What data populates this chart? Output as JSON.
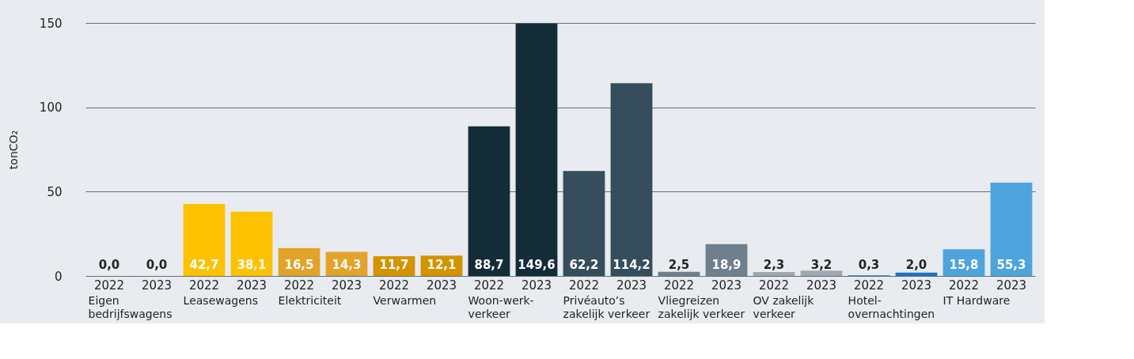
{
  "chart_data": {
    "type": "bar",
    "categories": [
      "2022",
      "2023",
      "2022",
      "2023",
      "2022",
      "2023",
      "2022",
      "2023",
      "2022",
      "2023",
      "2022",
      "2023",
      "2022",
      "2023",
      "2022",
      "2023",
      "2022",
      "2023",
      "2022",
      "2023"
    ],
    "values": [
      0.0,
      0.0,
      42.7,
      38.1,
      16.5,
      14.3,
      11.7,
      12.1,
      88.7,
      149.6,
      62.2,
      114.2,
      2.5,
      18.9,
      2.3,
      3.2,
      0.3,
      2.0,
      15.8,
      55.3
    ],
    "value_labels": [
      "0,0",
      "0,0",
      "42,7",
      "38,1",
      "16,5",
      "14,3",
      "11,7",
      "12,1",
      "88,7",
      "149,6",
      "62,2",
      "114,2",
      "2,5",
      "18,9",
      "2,3",
      "3,2",
      "0,3",
      "2,0",
      "15,8",
      "55,3"
    ],
    "colors": [
      "#c8c8c8",
      "#c8c8c8",
      "#fcc200",
      "#fcc200",
      "#e3a22a",
      "#e3a22a",
      "#d39400",
      "#d39400",
      "#142c38",
      "#142c38",
      "#364d5b",
      "#364d5b",
      "#6f7f8d",
      "#6f7f8d",
      "#a0a8ae",
      "#a0a8ae",
      "#1a6fb8",
      "#1a73c4",
      "#4fa3dc",
      "#4fa3dc"
    ],
    "annotations": [
      "Eigen\nbedrijfswagens",
      "Leasewagens",
      "Elektriciteit",
      "Verwarmen",
      "Woon-werk-\nverkeer",
      "Privéauto’s\nzakelijk verkeer",
      "Vliegreizen\nzakelijk verkeer",
      "OV zakelijk\nverkeer",
      "Hotel-\novernachtingen",
      "IT Hardware"
    ],
    "ylabel": "tonCO₂",
    "ylim": [
      0,
      150
    ],
    "yticks": [
      0,
      50,
      100,
      150
    ],
    "grid": "y"
  }
}
